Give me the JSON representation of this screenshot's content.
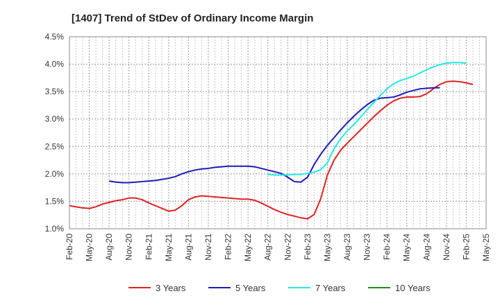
{
  "chart_data": {
    "type": "line",
    "title": "[1407]  Trend of StDev of Ordinary Income Margin",
    "xlabel": "",
    "ylabel": "",
    "ylim": [
      1.0,
      4.5
    ],
    "y_ticks": [
      "1.0%",
      "1.5%",
      "2.0%",
      "2.5%",
      "3.0%",
      "3.5%",
      "4.0%",
      "4.5%"
    ],
    "x_ticks": [
      "Feb-20",
      "May-20",
      "Aug-20",
      "Nov-20",
      "Feb-21",
      "May-21",
      "Aug-21",
      "Nov-21",
      "Feb-22",
      "May-22",
      "Aug-22",
      "Nov-22",
      "Feb-23",
      "May-23",
      "Aug-23",
      "Nov-23",
      "Feb-24",
      "May-24",
      "Aug-24",
      "Nov-24",
      "Feb-25",
      "May-25"
    ],
    "grid": true,
    "legend_position": "bottom",
    "series": [
      {
        "name": "3 Years",
        "color": "#e02020",
        "start_month_index": 0,
        "values": [
          1.42,
          1.4,
          1.38,
          1.37,
          1.4,
          1.45,
          1.48,
          1.51,
          1.53,
          1.56,
          1.56,
          1.53,
          1.47,
          1.42,
          1.37,
          1.32,
          1.34,
          1.42,
          1.53,
          1.58,
          1.6,
          1.59,
          1.58,
          1.57,
          1.56,
          1.55,
          1.54,
          1.54,
          1.52,
          1.47,
          1.41,
          1.35,
          1.3,
          1.26,
          1.23,
          1.2,
          1.18,
          1.26,
          1.55,
          1.98,
          2.25,
          2.43,
          2.56,
          2.68,
          2.8,
          2.92,
          3.04,
          3.15,
          3.25,
          3.33,
          3.38,
          3.4,
          3.4,
          3.41,
          3.46,
          3.55,
          3.63,
          3.68,
          3.69,
          3.68,
          3.66,
          3.63
        ]
      },
      {
        "name": "5 Years",
        "color": "#1a1ab8",
        "start_month_index": 6,
        "values": [
          1.87,
          1.85,
          1.84,
          1.84,
          1.85,
          1.86,
          1.87,
          1.88,
          1.9,
          1.92,
          1.95,
          2.0,
          2.04,
          2.07,
          2.09,
          2.1,
          2.12,
          2.13,
          2.14,
          2.14,
          2.14,
          2.14,
          2.13,
          2.1,
          2.07,
          2.04,
          2.01,
          1.94,
          1.86,
          1.85,
          1.94,
          2.17,
          2.36,
          2.52,
          2.66,
          2.8,
          2.93,
          3.05,
          3.16,
          3.26,
          3.34,
          3.38,
          3.39,
          3.4,
          3.44,
          3.49,
          3.52,
          3.55,
          3.56,
          3.57,
          3.57
        ]
      },
      {
        "name": "7 Years",
        "color": "#22e8e8",
        "start_month_index": 30,
        "values": [
          1.99,
          1.98,
          1.98,
          1.98,
          1.99,
          1.99,
          2.01,
          2.03,
          2.08,
          2.2,
          2.46,
          2.64,
          2.78,
          2.9,
          3.03,
          3.17,
          3.3,
          3.43,
          3.55,
          3.64,
          3.7,
          3.74,
          3.78,
          3.84,
          3.9,
          3.95,
          3.99,
          4.02,
          4.03,
          4.03,
          4.02
        ]
      },
      {
        "name": "10 Years",
        "color": "#1f8a1f",
        "start_month_index": 0,
        "values": []
      }
    ]
  }
}
